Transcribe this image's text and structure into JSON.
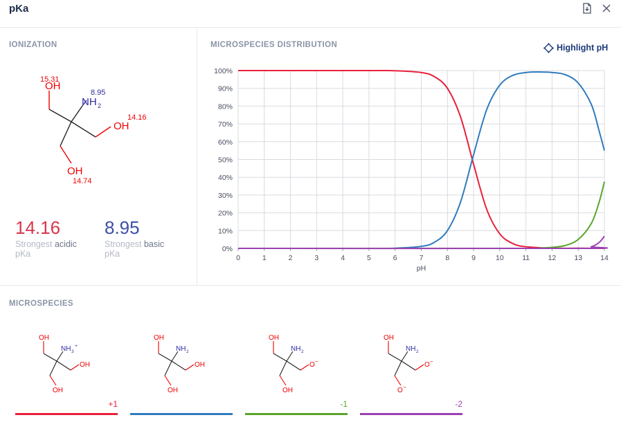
{
  "window": {
    "title": "pKa",
    "export_icon": "export-icon",
    "close_icon": "close-icon"
  },
  "ionization": {
    "heading": "IONIZATION",
    "labels": {
      "oh_top": "OH",
      "nh2": "NH",
      "nh2_sub": "2",
      "oh_right": "OH",
      "oh_bottom": "OH"
    },
    "pkas": {
      "oh_top": "15.31",
      "nh2": "8.95",
      "oh_right": "14.16",
      "oh_bottom": "14.74"
    },
    "strongest_acidic": {
      "value": "14.16",
      "prefix": "Strongest ",
      "kind": "acidic",
      "unit": "pKa"
    },
    "strongest_basic": {
      "value": "8.95",
      "prefix": "Strongest ",
      "kind": "basic",
      "unit": "pKa"
    }
  },
  "distribution": {
    "heading": "MICROSPECIES DISTRIBUTION",
    "highlight_label": "Highlight pH",
    "highlight_icon": "crosshair-icon"
  },
  "chart_data": {
    "type": "line",
    "xlabel": "pH",
    "ylabel": "",
    "xlim": [
      0,
      14
    ],
    "ylim": [
      0,
      100
    ],
    "x_ticks": [
      0,
      1,
      2,
      3,
      4,
      5,
      6,
      7,
      8,
      9,
      10,
      11,
      12,
      13,
      14
    ],
    "y_ticks": [
      "0%",
      "10%",
      "20%",
      "30%",
      "40%",
      "50%",
      "60%",
      "70%",
      "80%",
      "90%",
      "100%"
    ],
    "grid": true,
    "series": [
      {
        "color": "#e8203a",
        "x": [
          0,
          5,
          6,
          7,
          7.5,
          8,
          8.5,
          9,
          9.5,
          10,
          10.5,
          11,
          12,
          13,
          14
        ],
        "y": [
          100,
          100,
          99.9,
          98.9,
          96.6,
          90,
          74,
          47.3,
          22,
          8.2,
          2.7,
          0.9,
          0.1,
          0.1,
          0
        ]
      },
      {
        "color": "#2f7bbd",
        "x": [
          0,
          5,
          6,
          7,
          7.5,
          8,
          8.5,
          9,
          9.5,
          10,
          10.5,
          11,
          11.5,
          12,
          12.5,
          13,
          13.5,
          13.8,
          14
        ],
        "y": [
          0,
          0,
          0.1,
          1.1,
          3.4,
          10,
          26,
          52.7,
          78,
          91.8,
          97.3,
          98.9,
          99.2,
          98.9,
          97.7,
          93,
          81,
          66,
          55
        ]
      },
      {
        "color": "#5aa52a",
        "x": [
          0,
          11,
          11.5,
          12,
          12.5,
          13,
          13.5,
          13.8,
          14
        ],
        "y": [
          0,
          0,
          0.2,
          0.6,
          1.6,
          5,
          14,
          26,
          37.5
        ]
      },
      {
        "color": "#9b3fb2",
        "x": [
          0,
          13,
          13.5,
          13.8,
          14
        ],
        "y": [
          0,
          0,
          0.9,
          3.3,
          6.8
        ]
      }
    ]
  },
  "microspecies": {
    "heading": "MICROSPECIES",
    "items": [
      {
        "charge": "+1",
        "color": "#e8203a",
        "labels": {
          "oh_top": "OH",
          "n": "NH",
          "n_sub": "3",
          "n_sup": "+",
          "right": "OH",
          "right_sup": "",
          "bottom": "OH",
          "bottom_sup": ""
        }
      },
      {
        "charge": "",
        "color": "#2f7bbd",
        "labels": {
          "oh_top": "OH",
          "n": "NH",
          "n_sub": "2",
          "n_sup": "",
          "right": "OH",
          "right_sup": "",
          "bottom": "OH",
          "bottom_sup": ""
        }
      },
      {
        "charge": "-1",
        "color": "#5aa52a",
        "labels": {
          "oh_top": "OH",
          "n": "NH",
          "n_sub": "2",
          "n_sup": "",
          "right": "O",
          "right_sup": "−",
          "bottom": "OH",
          "bottom_sup": ""
        }
      },
      {
        "charge": "-2",
        "color": "#9b3fb2",
        "labels": {
          "oh_top": "OH",
          "n": "NH",
          "n_sub": "2",
          "n_sup": "",
          "right": "O",
          "right_sup": "−",
          "bottom": "O",
          "bottom_sup": "−"
        }
      }
    ]
  }
}
